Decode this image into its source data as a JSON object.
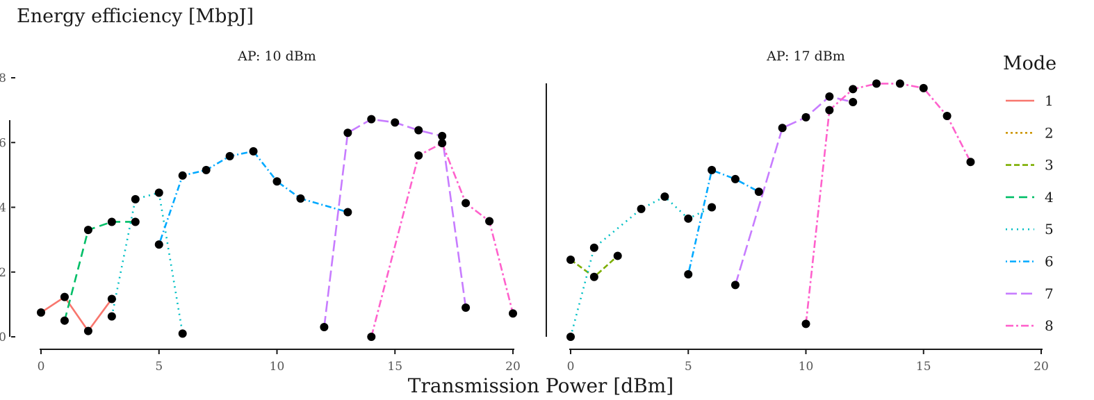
{
  "chart_data": {
    "type": "line",
    "title": "Energy efficiency [MbpJ]",
    "xlabel": "Transmission Power [dBm]",
    "ylabel": "",
    "xlim": [
      0,
      20
    ],
    "ylim": [
      0,
      8
    ],
    "x_ticks": [
      0,
      5,
      10,
      15,
      20
    ],
    "y_ticks": [
      0,
      2,
      4,
      6,
      8
    ],
    "legend": {
      "title": "Mode",
      "position": "right"
    },
    "panels": [
      {
        "label": "AP: 10 dBm",
        "series": [
          {
            "name": "1",
            "x": [
              0,
              1,
              2,
              3
            ],
            "y": [
              0.75,
              1.23,
              0.18,
              1.17
            ]
          },
          {
            "name": "2",
            "x": [],
            "y": []
          },
          {
            "name": "3",
            "x": [],
            "y": []
          },
          {
            "name": "4",
            "x": [
              1,
              2,
              3,
              4
            ],
            "y": [
              0.5,
              3.3,
              3.55,
              3.55
            ]
          },
          {
            "name": "5",
            "x": [
              3,
              4,
              5,
              6
            ],
            "y": [
              0.63,
              4.25,
              4.45,
              0.1
            ]
          },
          {
            "name": "6",
            "x": [
              5,
              6,
              7,
              8,
              9,
              10,
              11,
              13
            ],
            "y": [
              2.85,
              4.98,
              5.15,
              5.58,
              5.73,
              4.8,
              4.27,
              3.85
            ]
          },
          {
            "name": "7",
            "x": [
              12,
              13,
              14,
              15,
              16,
              17,
              18
            ],
            "y": [
              0.3,
              6.3,
              6.72,
              6.62,
              6.38,
              6.2,
              0.9
            ]
          },
          {
            "name": "8",
            "x": [
              14,
              16,
              17,
              18,
              19,
              20
            ],
            "y": [
              0.0,
              5.6,
              5.98,
              4.13,
              3.57,
              0.72
            ]
          }
        ]
      },
      {
        "label": "AP: 17 dBm",
        "series": [
          {
            "name": "1",
            "x": [],
            "y": []
          },
          {
            "name": "2",
            "x": [],
            "y": []
          },
          {
            "name": "3",
            "x": [
              0,
              1,
              2
            ],
            "y": [
              2.38,
              1.85,
              2.5
            ]
          },
          {
            "name": "4",
            "x": [],
            "y": []
          },
          {
            "name": "5",
            "x": [
              0,
              1,
              3,
              4,
              5,
              6
            ],
            "y": [
              0.0,
              2.75,
              3.95,
              4.33,
              3.65,
              4.0
            ]
          },
          {
            "name": "6",
            "x": [
              5,
              6,
              7,
              8
            ],
            "y": [
              1.93,
              5.15,
              4.87,
              4.48
            ]
          },
          {
            "name": "7",
            "x": [
              7,
              9,
              10,
              11,
              12
            ],
            "y": [
              1.6,
              6.45,
              6.78,
              7.42,
              7.25
            ]
          },
          {
            "name": "8",
            "x": [
              10,
              11,
              12,
              13,
              14,
              15,
              16,
              17
            ],
            "y": [
              0.4,
              7.0,
              7.65,
              7.82,
              7.82,
              7.68,
              6.82,
              5.4
            ]
          }
        ]
      }
    ],
    "series_styles": {
      "1": {
        "color": "#F8766D",
        "dash": "none"
      },
      "2": {
        "color": "#CD9600",
        "dash": "3 4"
      },
      "3": {
        "color": "#7CAE00",
        "dash": "8 4"
      },
      "4": {
        "color": "#00BE67",
        "dash": "12 7"
      },
      "5": {
        "color": "#00BFC4",
        "dash": "2 6"
      },
      "6": {
        "color": "#00A9FF",
        "dash": "2 4 9 4"
      },
      "7": {
        "color": "#C77CFF",
        "dash": "16 6"
      },
      "8": {
        "color": "#FF61CC",
        "dash": "11 4 3 4"
      }
    },
    "point_color": "#000000"
  }
}
